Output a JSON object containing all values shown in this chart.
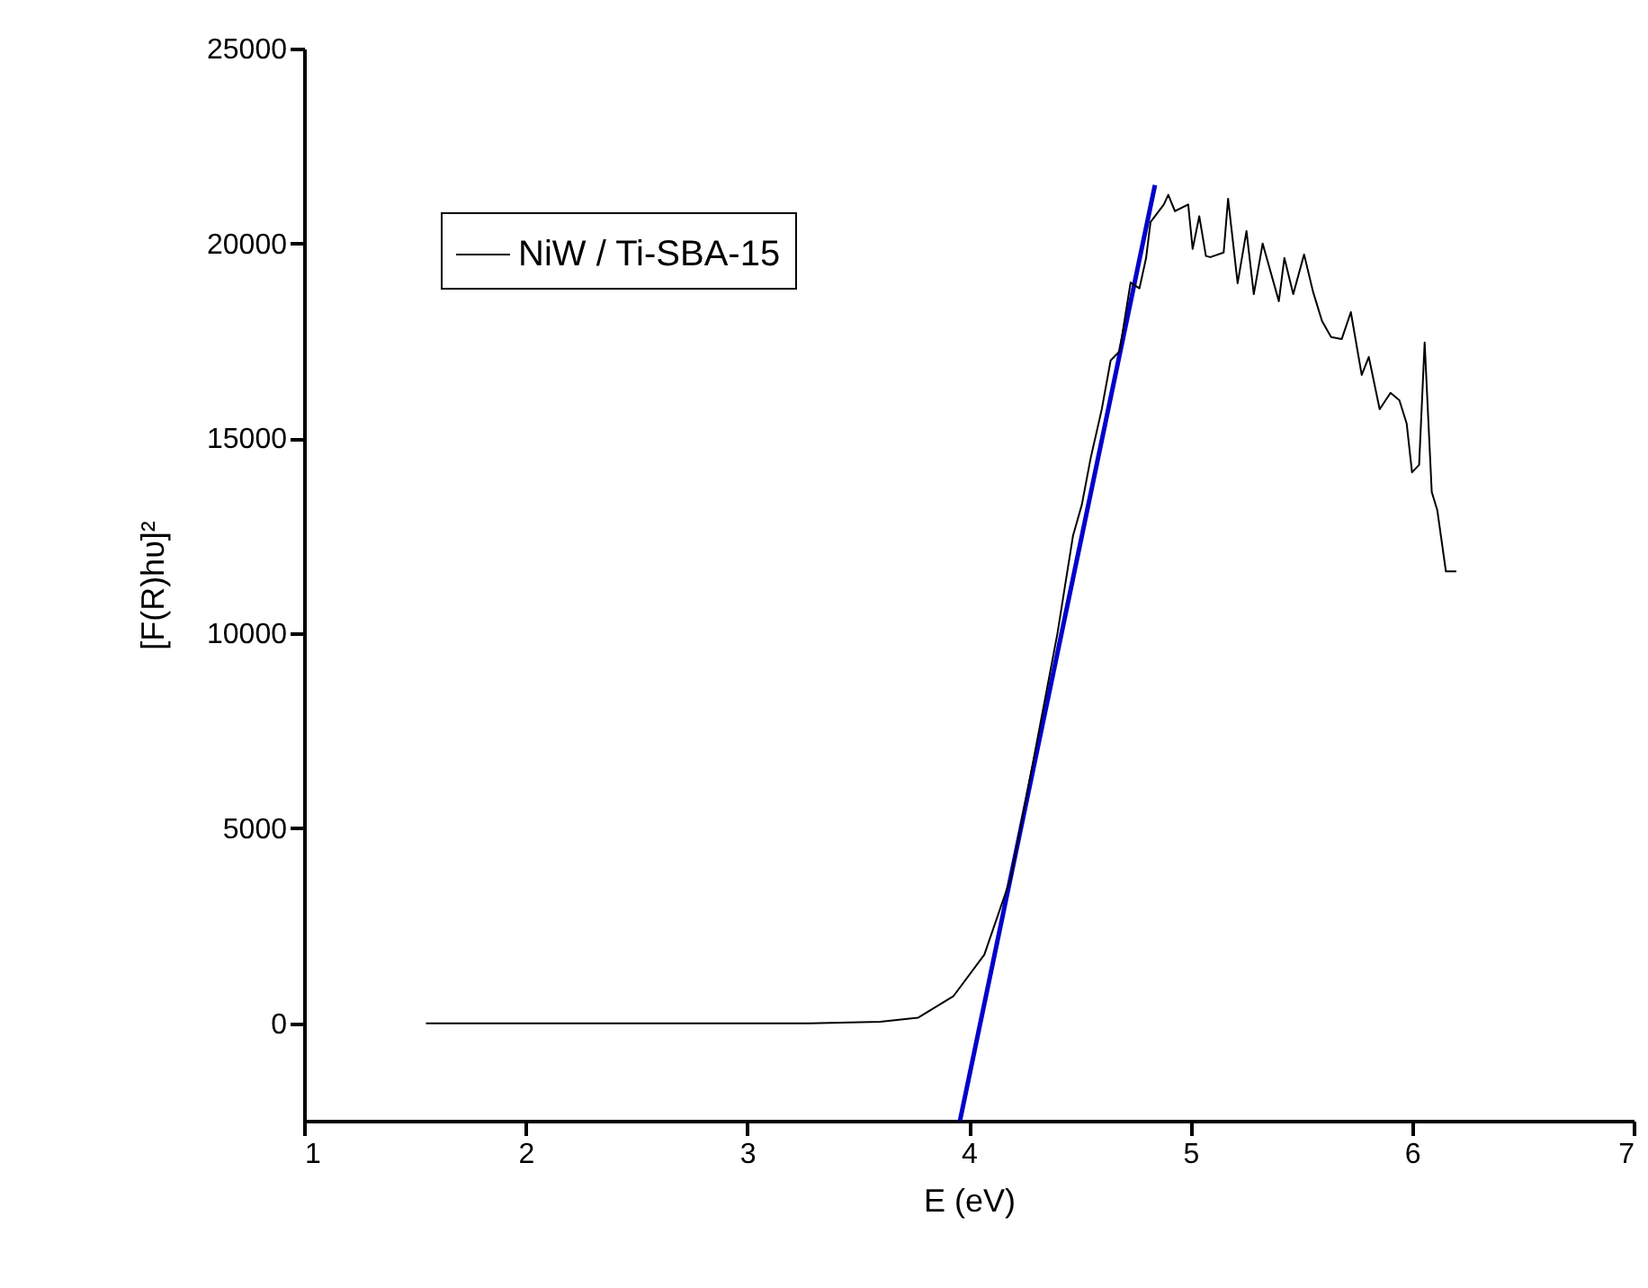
{
  "chart_data": {
    "type": "line",
    "xlabel": "E (eV)",
    "ylabel": "[F(R)hυ]²",
    "xlim": [
      1,
      7
    ],
    "xticks": [
      1,
      2,
      3,
      4,
      5,
      6,
      7
    ],
    "ylim": [
      -2500,
      25000
    ],
    "yticks": [
      0,
      5000,
      10000,
      15000,
      20000,
      25000
    ],
    "grid": false,
    "legend": "top left",
    "series": [
      {
        "name": "NiW / Ti-SBA-15",
        "color": "#000000",
        "x": [
          1.55,
          2.5,
          3.28,
          3.6,
          3.77,
          3.93,
          4.07,
          4.19,
          4.3,
          4.4,
          4.47,
          4.51,
          4.55,
          4.6,
          4.64,
          4.68,
          4.73,
          4.77,
          4.8,
          4.82,
          4.88,
          4.9,
          4.93,
          4.99,
          5.01,
          5.04,
          5.07,
          5.09,
          5.15,
          5.17,
          5.213,
          5.253,
          5.286,
          5.326,
          5.399,
          5.424,
          5.464,
          5.513,
          5.554,
          5.594,
          5.635,
          5.683,
          5.724,
          5.773,
          5.805,
          5.854,
          5.903,
          5.943,
          5.976,
          6.0,
          6.032,
          6.057,
          6.089,
          6.114,
          6.153,
          6.2
        ],
        "values": [
          0,
          0,
          0,
          40,
          140,
          690,
          1760,
          3740,
          7000,
          10000,
          12500,
          13300,
          14500,
          15750,
          17000,
          17230,
          19000,
          18850,
          19630,
          20550,
          21000,
          21250,
          20830,
          21000,
          19860,
          20700,
          19680,
          19650,
          19770,
          21150,
          18980,
          20320,
          18700,
          20000,
          18520,
          19630,
          18700,
          19720,
          18750,
          18010,
          17600,
          17550,
          18240,
          16630,
          17090,
          15750,
          16170,
          15980,
          15380,
          14130,
          14320,
          17460,
          13630,
          13160,
          11590,
          11590
        ]
      },
      {
        "color": "#0000cc",
        "x": [
          3.96,
          4.84
        ],
        "values": [
          -2500,
          21500
        ]
      }
    ]
  }
}
